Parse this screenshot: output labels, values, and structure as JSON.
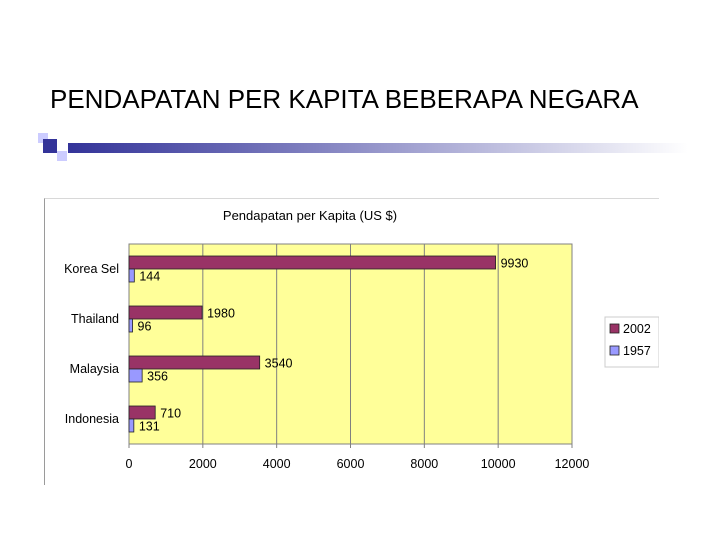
{
  "slide": {
    "title": "PENDAPATAN PER KAPITA BEBERAPA NEGARA"
  },
  "colors": {
    "plot_background": "#ffff99",
    "series_2002": "#993366",
    "series_1957": "#9999ff",
    "deco_dark": "#333399",
    "deco_light": "#ccccff"
  },
  "chart_data": {
    "type": "bar",
    "orientation": "horizontal",
    "title": "Pendapatan per Kapita (US $)",
    "categories": [
      "Korea Sel",
      "Thailand",
      "Malaysia",
      "Indonesia"
    ],
    "series": [
      {
        "name": "2002",
        "color": "#993366",
        "values": [
          9930,
          1980,
          3540,
          710
        ]
      },
      {
        "name": "1957",
        "color": "#9999ff",
        "values": [
          144,
          96,
          356,
          131
        ]
      }
    ],
    "xlim": [
      0,
      12000
    ],
    "xticks": [
      "0",
      "2000",
      "4000",
      "6000",
      "8000",
      "10000",
      "12000"
    ],
    "grid": "vertical",
    "legend": "right"
  }
}
